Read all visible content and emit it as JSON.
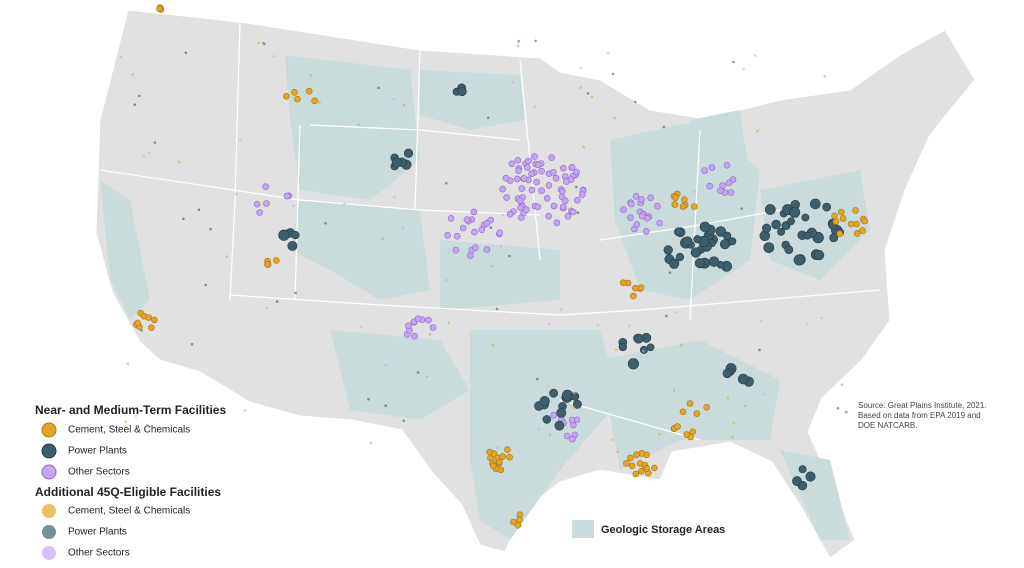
{
  "legend": {
    "near_term": {
      "title": "Near- and Medium-Term Facilities",
      "items": [
        "Cement, Steel & Chemicals",
        "Power Plants",
        "Other Sectors"
      ]
    },
    "additional": {
      "title": "Additional 45Q-Eligible Facilities",
      "items": [
        "Cement, Steel & Chemicals",
        "Power Plants",
        "Other Sectors"
      ]
    },
    "storage": "Geologic Storage Areas"
  },
  "source": [
    "Source: Great Plains Institute, 2021.",
    "Based on data from EPA 2019 and",
    "DOE NATCARB."
  ]
}
